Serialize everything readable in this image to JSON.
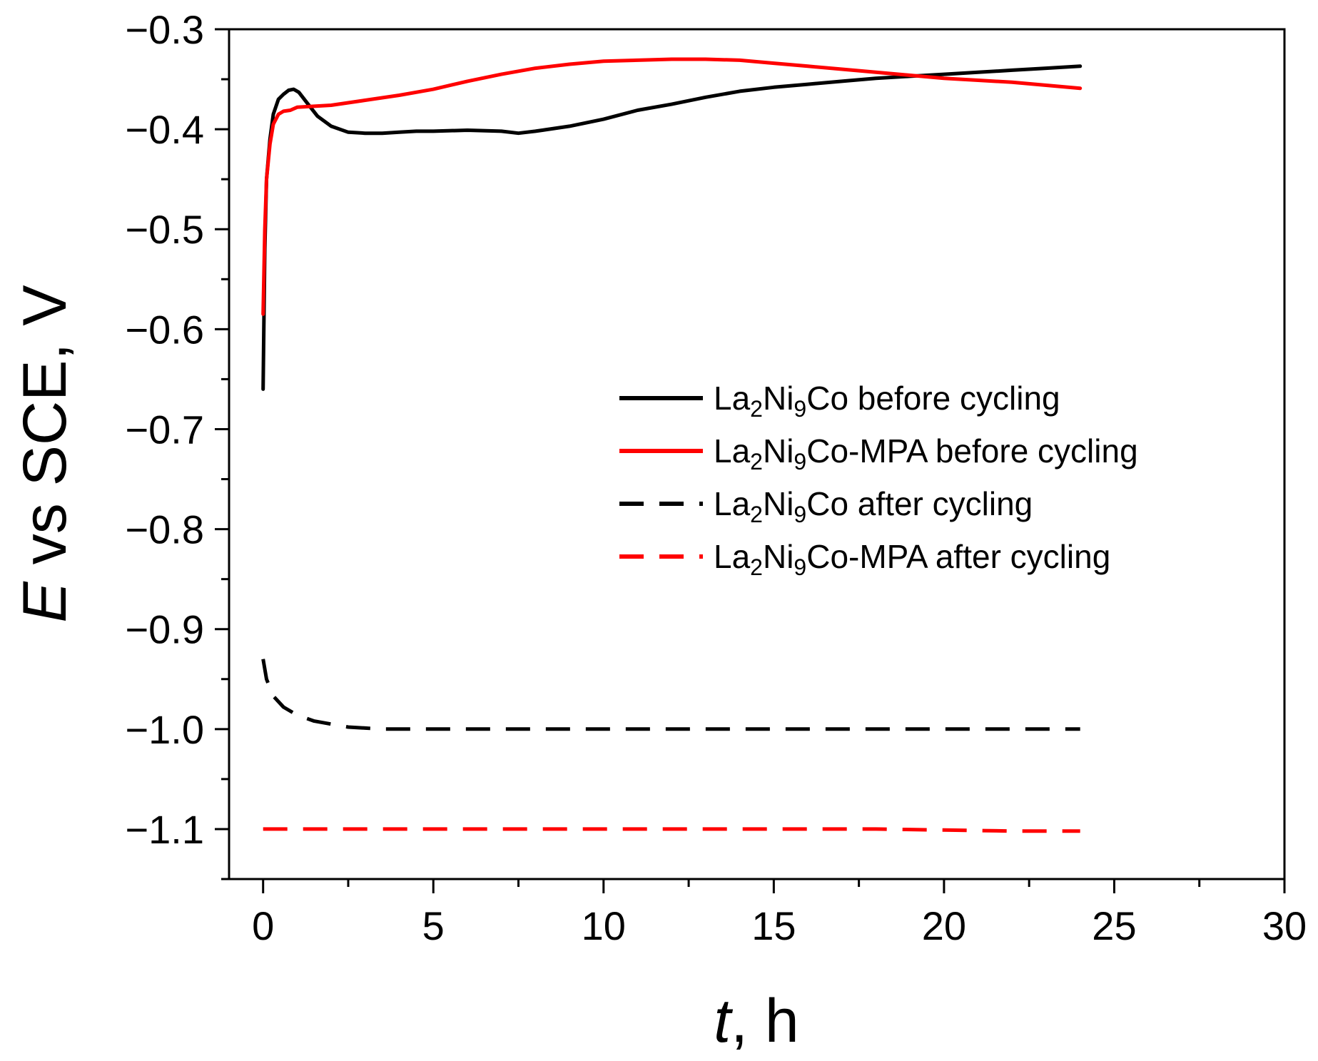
{
  "chart_data": {
    "type": "line",
    "title": "",
    "xlabel_var": "t",
    "xlabel_rest": ", h",
    "ylabel_var": "E",
    "ylabel_rest": " vs SCE, V",
    "xlim": [
      -1,
      30
    ],
    "ylim": [
      -1.15,
      -0.3
    ],
    "xticks": [
      0,
      5,
      10,
      15,
      20,
      25,
      30
    ],
    "yticks": [
      -0.3,
      -0.4,
      -0.5,
      -0.6,
      -0.7,
      -0.8,
      -0.9,
      -1.0,
      -1.1
    ],
    "xtick_labels": [
      "0",
      "5",
      "10",
      "15",
      "20",
      "25",
      "30"
    ],
    "ytick_labels": [
      "−0.3",
      "−0.4",
      "−0.5",
      "−0.6",
      "−0.7",
      "−0.8",
      "−0.9",
      "−1.0",
      "−1.1"
    ],
    "legend_position": "center-right",
    "series": [
      {
        "name": "La2Ni9Co before cycling",
        "label": {
          "pre": "La",
          "s1": "2",
          "mid": "Ni",
          "s2": "9",
          "post": "Co before cycling"
        },
        "color": "#000000",
        "dash": "solid",
        "x": [
          0,
          0.02,
          0.05,
          0.1,
          0.2,
          0.3,
          0.45,
          0.6,
          0.75,
          0.9,
          1.05,
          1.3,
          1.6,
          2.0,
          2.5,
          3.0,
          3.5,
          4.0,
          4.5,
          5.0,
          6.0,
          7.0,
          7.5,
          8.0,
          9.0,
          10.0,
          11.0,
          12.0,
          13.0,
          14.0,
          15.0,
          16.0,
          17.0,
          18.0,
          19.0,
          20.0,
          21.0,
          22.0,
          23.0,
          24.0
        ],
        "y": [
          -0.66,
          -0.6,
          -0.52,
          -0.45,
          -0.41,
          -0.385,
          -0.37,
          -0.365,
          -0.361,
          -0.36,
          -0.363,
          -0.374,
          -0.387,
          -0.397,
          -0.403,
          -0.404,
          -0.404,
          -0.403,
          -0.402,
          -0.402,
          -0.401,
          -0.402,
          -0.404,
          -0.402,
          -0.397,
          -0.39,
          -0.381,
          -0.375,
          -0.368,
          -0.362,
          -0.358,
          -0.355,
          -0.352,
          -0.349,
          -0.347,
          -0.345,
          -0.343,
          -0.341,
          -0.339,
          -0.337
        ]
      },
      {
        "name": "La2Ni9Co-MPA before cycling",
        "label": {
          "pre": "La",
          "s1": "2",
          "mid": "Ni",
          "s2": "9",
          "post": "Co-MPA before cycling"
        },
        "color": "#ff0000",
        "dash": "solid",
        "x": [
          0,
          0.02,
          0.05,
          0.1,
          0.2,
          0.3,
          0.45,
          0.6,
          0.8,
          1.0,
          1.5,
          2.0,
          3.0,
          4.0,
          5.0,
          6.0,
          7.0,
          8.0,
          9.0,
          10.0,
          11.0,
          12.0,
          13.0,
          14.0,
          15.0,
          16.0,
          17.0,
          18.0,
          19.0,
          20.0,
          21.0,
          22.0,
          23.0,
          24.0
        ],
        "y": [
          -0.585,
          -0.55,
          -0.5,
          -0.45,
          -0.415,
          -0.395,
          -0.385,
          -0.382,
          -0.381,
          -0.378,
          -0.377,
          -0.376,
          -0.371,
          -0.366,
          -0.36,
          -0.352,
          -0.345,
          -0.339,
          -0.335,
          -0.332,
          -0.331,
          -0.33,
          -0.33,
          -0.331,
          -0.334,
          -0.337,
          -0.34,
          -0.343,
          -0.346,
          -0.349,
          -0.351,
          -0.353,
          -0.356,
          -0.359
        ]
      },
      {
        "name": "La2Ni9Co after cycling",
        "label": {
          "pre": "La",
          "s1": "2",
          "mid": "Ni",
          "s2": "9",
          "post": "Co after cycling"
        },
        "color": "#000000",
        "dash": "dashed",
        "x": [
          0,
          0.1,
          0.3,
          0.6,
          1.0,
          1.5,
          2.0,
          2.5,
          3.0,
          3.5,
          4.0,
          6.0,
          8.0,
          10.0,
          12.0,
          14.0,
          16.0,
          18.0,
          20.0,
          22.0,
          24.0
        ],
        "y": [
          -0.93,
          -0.95,
          -0.967,
          -0.978,
          -0.986,
          -0.992,
          -0.995,
          -0.998,
          -0.999,
          -1.0,
          -1.0,
          -1.0,
          -1.0,
          -1.0,
          -1.0,
          -1.0,
          -1.0,
          -1.0,
          -1.0,
          -1.0,
          -1.0
        ]
      },
      {
        "name": "La2Ni9Co-MPA after cycling",
        "label": {
          "pre": "La",
          "s1": "2",
          "mid": "Ni",
          "s2": "9",
          "post": "Co-MPA after cycling"
        },
        "color": "#ff0000",
        "dash": "dashed",
        "x": [
          0,
          2,
          4,
          6,
          8,
          10,
          12,
          14,
          16,
          18,
          20,
          22,
          24
        ],
        "y": [
          -1.1,
          -1.1,
          -1.1,
          -1.1,
          -1.1,
          -1.1,
          -1.1,
          -1.1,
          -1.1,
          -1.1,
          -1.101,
          -1.102,
          -1.102
        ]
      }
    ]
  }
}
